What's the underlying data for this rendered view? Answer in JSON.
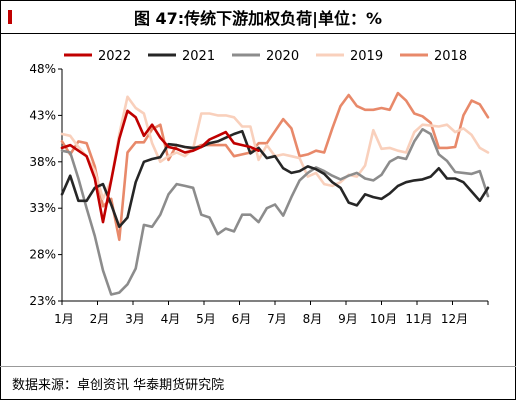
{
  "title": "图 47:传统下游加权负荷|单位：%",
  "source": "数据来源：卓创资讯  华泰期货研究院",
  "chart_data": {
    "type": "line",
    "ylim": [
      23,
      48
    ],
    "yticks": [
      23,
      28,
      33,
      38,
      43,
      48
    ],
    "ytick_labels": [
      "23%",
      "28%",
      "33%",
      "38%",
      "43%",
      "48%"
    ],
    "xlim": [
      0,
      52
    ],
    "xtick_labels": [
      "1月",
      "2月",
      "3月",
      "4月",
      "5月",
      "6月",
      "7月",
      "8月",
      "9月",
      "10月",
      "11月",
      "12月"
    ],
    "legend_position": "top",
    "series": [
      {
        "name": "2022",
        "color": "#c00000",
        "x": [
          0,
          1,
          2,
          3,
          4,
          5,
          6,
          7,
          8,
          9,
          10,
          11,
          12,
          13,
          14,
          15,
          16,
          17,
          18,
          19,
          20,
          21,
          22,
          23,
          24
        ],
        "values": [
          39.5,
          39.8,
          39.2,
          38.6,
          36.2,
          31.5,
          36.0,
          40.5,
          43.5,
          42.8,
          40.8,
          42.0,
          40.6,
          39.6,
          39.4,
          39.0,
          39.2,
          39.6,
          40.4,
          40.8,
          41.2,
          40.0,
          39.8,
          39.6,
          39.2
        ]
      },
      {
        "name": "2021",
        "color": "#262626",
        "x": [
          0,
          1,
          2,
          3,
          4,
          5,
          6,
          7,
          8,
          9,
          10,
          11,
          12,
          13,
          14,
          15,
          16,
          17,
          18,
          19,
          20,
          21,
          22,
          23,
          24,
          25,
          26,
          27,
          28,
          29,
          30,
          31,
          32,
          33,
          34,
          35,
          36,
          37,
          38,
          39,
          40,
          41,
          42,
          43,
          44,
          45,
          46,
          47,
          48,
          49,
          50,
          51,
          52
        ],
        "values": [
          34.5,
          36.5,
          33.8,
          33.8,
          35.2,
          35.6,
          33.4,
          31.0,
          32.0,
          35.8,
          38.0,
          38.3,
          38.5,
          39.9,
          39.8,
          39.6,
          39.5,
          39.6,
          40.0,
          40.2,
          40.6,
          41.0,
          41.3,
          38.9,
          39.5,
          38.4,
          38.6,
          37.3,
          36.8,
          37.0,
          37.5,
          37.2,
          36.7,
          35.8,
          35.2,
          33.6,
          33.3,
          34.5,
          34.2,
          34.0,
          34.6,
          35.4,
          35.8,
          36.0,
          36.1,
          36.4,
          37.3,
          36.2,
          36.2,
          35.8,
          34.8,
          33.8,
          35.2
        ]
      },
      {
        "name": "2020",
        "color": "#8c8c8c",
        "x": [
          0,
          1,
          2,
          3,
          4,
          5,
          6,
          7,
          8,
          9,
          10,
          11,
          12,
          13,
          14,
          15,
          16,
          17,
          18,
          19,
          20,
          21,
          22,
          23,
          24,
          25,
          26,
          27,
          28,
          29,
          30,
          31,
          32,
          33,
          34,
          35,
          36,
          37,
          38,
          39,
          40,
          41,
          42,
          43,
          44,
          45,
          46,
          47,
          48,
          49,
          50,
          51,
          52
        ],
        "values": [
          39.2,
          39.0,
          36.2,
          33.0,
          30.0,
          26.3,
          23.7,
          23.9,
          24.8,
          26.5,
          31.2,
          31.0,
          32.3,
          34.5,
          35.6,
          35.4,
          35.2,
          32.3,
          32.0,
          30.2,
          30.8,
          30.5,
          32.3,
          32.3,
          31.5,
          33.0,
          33.4,
          32.2,
          34.2,
          36.0,
          36.8,
          37.4,
          37.0,
          36.5,
          36.1,
          36.5,
          36.8,
          36.2,
          36.0,
          36.6,
          38.0,
          38.5,
          38.3,
          40.2,
          41.5,
          41.0,
          38.8,
          38.1,
          36.9,
          36.8,
          36.7,
          37.0,
          34.3
        ]
      },
      {
        "name": "2019",
        "color": "#f9d0bc",
        "x": [
          0,
          1,
          2,
          3,
          4,
          5,
          6,
          7,
          8,
          9,
          10,
          11,
          12,
          13,
          14,
          15,
          16,
          17,
          18,
          19,
          20,
          21,
          22,
          23,
          24,
          25,
          26,
          27,
          28,
          29,
          30,
          31,
          32,
          33,
          34,
          35,
          36,
          37,
          38,
          39,
          40,
          41,
          42,
          43,
          44,
          45,
          46,
          47,
          48,
          49,
          50,
          51,
          52
        ],
        "values": [
          41.0,
          40.8,
          39.6,
          38.6,
          37.0,
          34.0,
          36.0,
          41.0,
          45.0,
          43.8,
          43.2,
          40.0,
          38.0,
          38.6,
          39.0,
          38.6,
          39.4,
          43.2,
          43.2,
          43.0,
          43.0,
          42.8,
          41.8,
          41.8,
          38.2,
          39.8,
          38.6,
          38.8,
          38.6,
          38.4,
          36.4,
          36.8,
          35.6,
          35.4,
          35.8,
          36.6,
          36.4,
          37.6,
          41.4,
          39.4,
          39.5,
          39.2,
          39.0,
          41.2,
          42.0,
          41.9,
          41.8,
          42.0,
          41.2,
          41.6,
          40.9,
          39.5,
          39.0
        ]
      },
      {
        "name": "2018",
        "color": "#e8896a",
        "x": [
          0,
          1,
          2,
          3,
          4,
          5,
          6,
          7,
          8,
          9,
          10,
          11,
          12,
          13,
          14,
          15,
          16,
          17,
          18,
          19,
          20,
          21,
          22,
          23,
          24,
          25,
          26,
          27,
          28,
          29,
          30,
          31,
          32,
          33,
          34,
          35,
          36,
          37,
          38,
          39,
          40,
          41,
          42,
          43,
          44,
          45,
          46,
          47,
          48,
          49,
          50,
          51,
          52
        ],
        "values": [
          40.2,
          38.8,
          40.2,
          40.0,
          37.5,
          33.2,
          34.0,
          29.6,
          39.0,
          40.1,
          40.1,
          41.5,
          42.0,
          38.2,
          39.8,
          39.6,
          39.4,
          39.8,
          39.8,
          39.8,
          39.8,
          38.6,
          38.8,
          39.0,
          40.0,
          40.0,
          41.3,
          42.6,
          41.6,
          38.6,
          38.8,
          39.2,
          39.0,
          41.6,
          44.0,
          45.2,
          44.0,
          43.6,
          43.6,
          43.8,
          43.6,
          45.4,
          44.6,
          43.2,
          42.9,
          42.2,
          39.5,
          39.5,
          39.6,
          43.0,
          44.6,
          44.2,
          42.8
        ]
      }
    ]
  }
}
